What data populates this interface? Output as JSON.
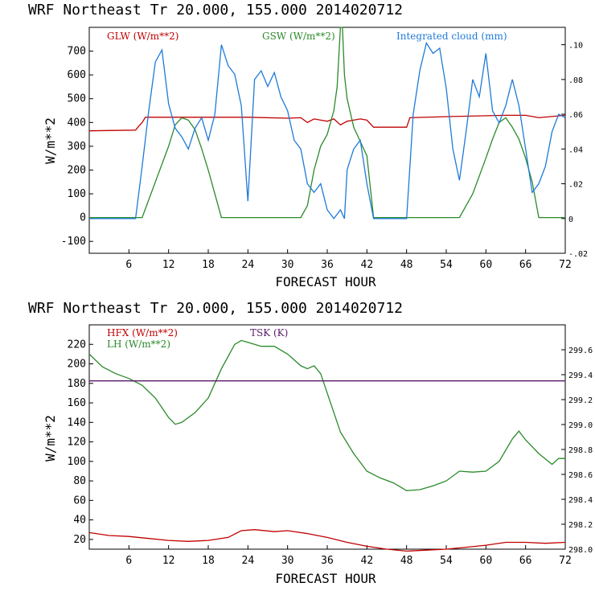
{
  "colors": {
    "glw": "#c00000",
    "gsw": "#2a8a2a",
    "cloud": "#1e7ad8",
    "hfx": "#c00000",
    "lh": "#2a8a2a",
    "tsk": "#5a1a6a"
  },
  "chart_data": [
    {
      "type": "line",
      "title": "WRF  Northeast Tr  20.000, 155.000  2014020712",
      "xlabel": "FORECAST HOUR",
      "ylabel": "W/m**2",
      "xlim": [
        0,
        72
      ],
      "ylim": [
        -150,
        800
      ],
      "y2lim": [
        -0.02,
        0.11
      ],
      "xticks": [
        "6",
        "12",
        "18",
        "24",
        "30",
        "36",
        "42",
        "48",
        "54",
        "60",
        "66",
        "72"
      ],
      "yticks": [
        "-100",
        "0",
        "100",
        "200",
        "300",
        "400",
        "500",
        "600",
        "700"
      ],
      "y2ticks": [
        "-.02",
        "0",
        ".02",
        ".04",
        ".06",
        ".08",
        ".10"
      ],
      "series": [
        {
          "name": "GLW (W/m**2)",
          "axis": "left",
          "x": [
            0,
            7,
            7.5,
            8,
            8.5,
            15,
            24,
            30,
            32,
            33,
            34,
            35,
            36,
            37,
            38,
            39,
            40,
            41,
            42,
            43,
            48,
            48.5,
            55,
            63,
            66,
            68,
            72
          ],
          "y": [
            365,
            368,
            385,
            400,
            422,
            422,
            422,
            418,
            420,
            400,
            415,
            410,
            405,
            415,
            390,
            405,
            410,
            415,
            410,
            380,
            380,
            420,
            425,
            430,
            430,
            420,
            430
          ]
        },
        {
          "name": "GSW (W/m**2)",
          "axis": "left",
          "x": [
            0,
            8,
            10,
            12,
            13,
            14,
            15,
            16,
            17,
            18,
            19,
            20,
            32,
            33,
            34,
            35,
            36,
            37,
            37.5,
            38,
            38.3,
            38.6,
            39,
            40,
            41,
            42,
            43,
            56,
            58,
            60,
            61,
            62,
            63,
            64,
            65,
            66,
            67,
            68,
            72
          ],
          "y": [
            0,
            0,
            150,
            300,
            390,
            420,
            410,
            370,
            290,
            200,
            100,
            0,
            0,
            50,
            200,
            300,
            350,
            450,
            550,
            800,
            800,
            600,
            500,
            380,
            320,
            260,
            0,
            0,
            100,
            250,
            330,
            400,
            420,
            380,
            330,
            250,
            150,
            0,
            0
          ]
        },
        {
          "name": "Integrated cloud (mm)",
          "axis": "right",
          "x": [
            0,
            7,
            8,
            9,
            10,
            11,
            12,
            13,
            14,
            15,
            16,
            17,
            18,
            19,
            20,
            21,
            22,
            23,
            24,
            25,
            26,
            27,
            28,
            29,
            30,
            31,
            32,
            33,
            34,
            35,
            36,
            37,
            38,
            38.6,
            39,
            40,
            41,
            42,
            43,
            44,
            48,
            49,
            50,
            51,
            52,
            53,
            54,
            55,
            56,
            57,
            58,
            59,
            60,
            61,
            62,
            63,
            64,
            65,
            66,
            67,
            68,
            69,
            70,
            71,
            72
          ],
          "y": [
            0,
            0,
            0.03,
            0.062,
            0.09,
            0.097,
            0.066,
            0.052,
            0.047,
            0.04,
            0.052,
            0.058,
            0.045,
            0.06,
            0.1,
            0.088,
            0.083,
            0.065,
            0.01,
            0.08,
            0.085,
            0.076,
            0.084,
            0.07,
            0.062,
            0.045,
            0.04,
            0.02,
            0.015,
            0.02,
            0.005,
            0.0,
            0.005,
            0.0,
            0.028,
            0.04,
            0.045,
            0.02,
            0.0,
            0.0,
            0.0,
            0.06,
            0.085,
            0.101,
            0.095,
            0.098,
            0.075,
            0.04,
            0.022,
            0.05,
            0.08,
            0.07,
            0.095,
            0.062,
            0.055,
            0.065,
            0.08,
            0.065,
            0.04,
            0.015,
            0.02,
            0.03,
            0.05,
            0.06,
            0.058
          ]
        }
      ]
    },
    {
      "type": "line",
      "title": "WRF  Northeast Tr  20.000, 155.000  2014020712",
      "xlabel": "FORECAST HOUR",
      "ylabel": "W/m**2",
      "xlim": [
        0,
        72
      ],
      "ylim": [
        10,
        240
      ],
      "y2lim": [
        298.0,
        299.8
      ],
      "xticks": [
        "6",
        "12",
        "18",
        "24",
        "30",
        "36",
        "42",
        "48",
        "54",
        "60",
        "66",
        "72"
      ],
      "yticks": [
        "20",
        "40",
        "60",
        "80",
        "100",
        "120",
        "140",
        "160",
        "180",
        "200",
        "220"
      ],
      "y2ticks": [
        "298.0",
        "298.2",
        "298.4",
        "298.6",
        "298.8",
        "299.0",
        "299.2",
        "299.4",
        "299.6"
      ],
      "series": [
        {
          "name": "HFX (W/m**2)",
          "axis": "left",
          "x": [
            0,
            3,
            6,
            9,
            12,
            15,
            18,
            21,
            23,
            25,
            28,
            30,
            33,
            36,
            39,
            42,
            45,
            48,
            51,
            54,
            57,
            60,
            63,
            66,
            69,
            72
          ],
          "y": [
            27,
            24,
            23,
            21,
            19,
            18,
            19,
            22,
            29,
            30,
            28,
            29,
            26,
            22,
            17,
            13,
            10,
            8,
            9,
            10,
            12,
            14,
            17,
            17,
            16,
            17
          ]
        },
        {
          "name": "LH (W/m**2)",
          "axis": "left",
          "x": [
            0,
            2,
            4,
            6,
            8,
            10,
            12,
            13,
            14,
            16,
            18,
            20,
            22,
            23,
            24,
            26,
            28,
            30,
            32,
            33,
            34,
            35,
            36,
            38,
            40,
            42,
            44,
            46,
            48,
            50,
            52,
            54,
            56,
            58,
            60,
            62,
            64,
            65,
            66,
            68,
            70,
            71,
            72
          ],
          "y": [
            210,
            197,
            190,
            185,
            178,
            165,
            145,
            138,
            140,
            150,
            165,
            195,
            220,
            224,
            222,
            218,
            218,
            210,
            198,
            195,
            198,
            190,
            170,
            130,
            108,
            90,
            83,
            78,
            70,
            71,
            75,
            80,
            90,
            89,
            90,
            100,
            123,
            131,
            122,
            108,
            97,
            103,
            103
          ]
        },
        {
          "name": "TSK (K)",
          "axis": "right",
          "x": [
            0,
            72
          ],
          "y": [
            299.35,
            299.35
          ]
        }
      ]
    }
  ]
}
